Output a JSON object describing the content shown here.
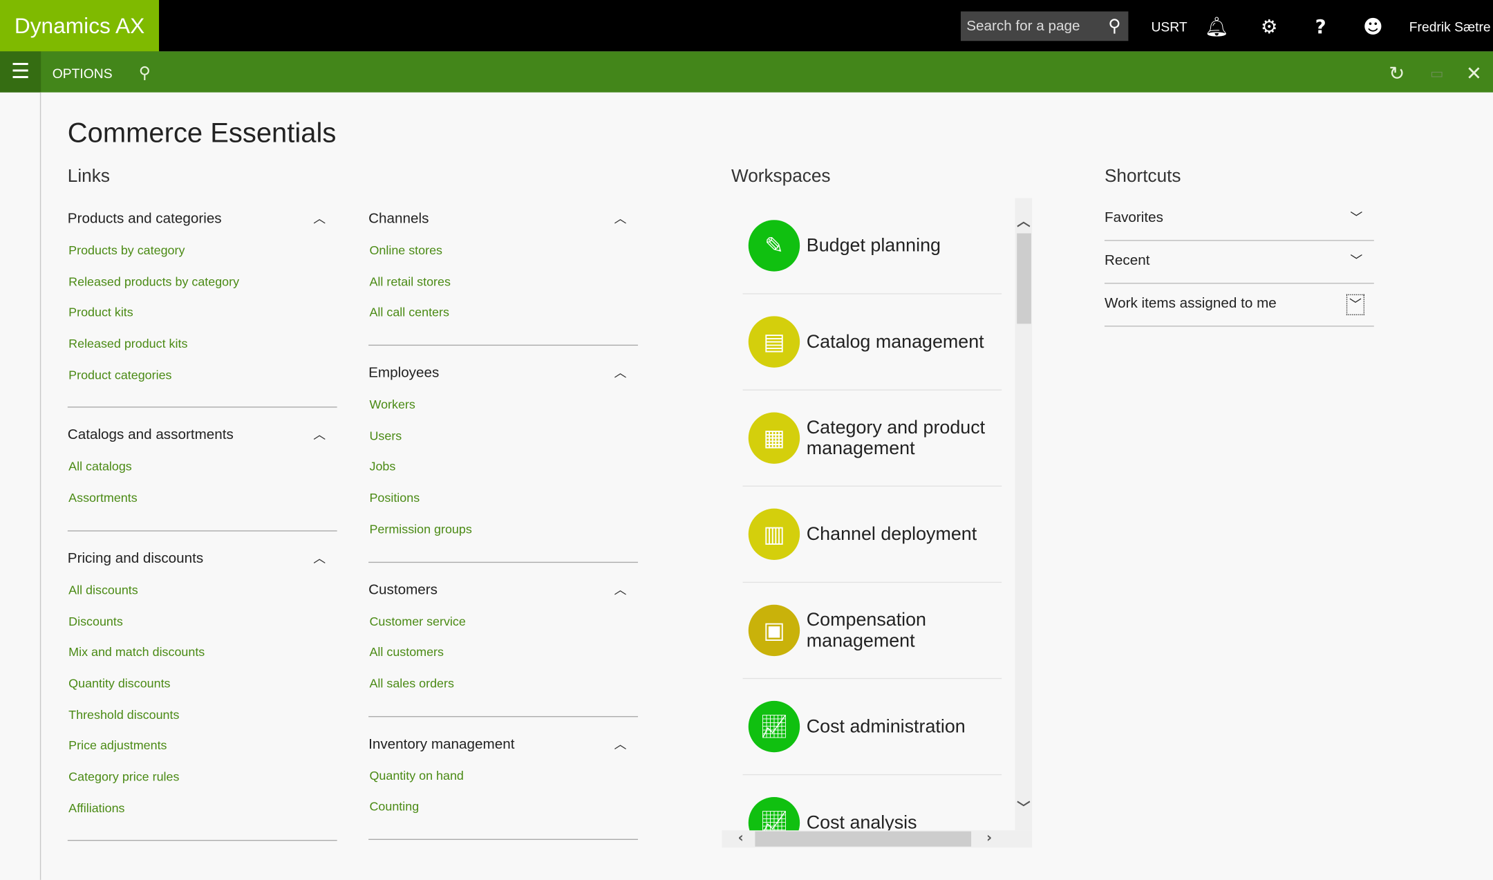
{
  "app": {
    "title": "Dynamics AX",
    "search_placeholder": "Search for a page",
    "company": "USRT",
    "user": "Fredrik Sætre"
  },
  "actionbar": {
    "options_label": "OPTIONS"
  },
  "page": {
    "title": "Commerce Essentials"
  },
  "links": {
    "heading": "Links",
    "col1": [
      {
        "title": "Products and categories",
        "items": [
          "Products by category",
          "Released products by category",
          "Product kits",
          "Released product kits",
          "Product categories"
        ]
      },
      {
        "title": "Catalogs and assortments",
        "items": [
          "All catalogs",
          "Assortments"
        ]
      },
      {
        "title": "Pricing and discounts",
        "items": [
          "All discounts",
          "Discounts",
          "Mix and match discounts",
          "Quantity discounts",
          "Threshold discounts",
          "Price adjustments",
          "Category price rules",
          "Affiliations"
        ]
      }
    ],
    "col2": [
      {
        "title": "Channels",
        "items": [
          "Online stores",
          "All retail stores",
          "All call centers"
        ]
      },
      {
        "title": "Employees",
        "items": [
          "Workers",
          "Users",
          "Jobs",
          "Positions",
          "Permission groups"
        ]
      },
      {
        "title": "Customers",
        "items": [
          "Customer service",
          "All customers",
          "All sales orders"
        ]
      },
      {
        "title": "Inventory management",
        "items": [
          "Quantity on hand",
          "Counting"
        ]
      }
    ]
  },
  "workspaces": {
    "heading": "Workspaces",
    "tiles": [
      {
        "label": "Budget planning",
        "color": "#10c010",
        "icon": "budget-icon"
      },
      {
        "label": "Catalog management",
        "color": "#d4cf0c",
        "icon": "catalog-icon"
      },
      {
        "label": "Category and product management",
        "color": "#d4cf0c",
        "icon": "product-box-icon"
      },
      {
        "label": "Channel deployment",
        "color": "#d4cf0c",
        "icon": "store-icon"
      },
      {
        "label": "Compensation management",
        "color": "#c9b20a",
        "icon": "compensation-icon"
      },
      {
        "label": "Cost administration",
        "color": "#10c010",
        "icon": "chart-gear-icon"
      },
      {
        "label": "Cost analysis",
        "color": "#10c010",
        "icon": "chart-up-icon"
      }
    ]
  },
  "shortcuts": {
    "heading": "Shortcuts",
    "items": [
      "Favorites",
      "Recent",
      "Work items assigned to me"
    ]
  },
  "colors": {
    "brand": "#7fba00",
    "action_bar": "#43861a",
    "link": "#4a8a14"
  }
}
